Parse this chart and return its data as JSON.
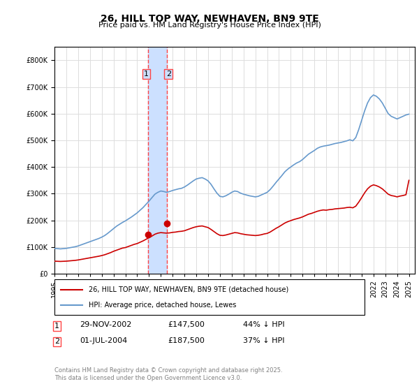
{
  "title": "26, HILL TOP WAY, NEWHAVEN, BN9 9TE",
  "subtitle": "Price paid vs. HM Land Registry's House Price Index (HPI)",
  "legend_label_red": "26, HILL TOP WAY, NEWHAVEN, BN9 9TE (detached house)",
  "legend_label_blue": "HPI: Average price, detached house, Lewes",
  "purchase1_label": "1",
  "purchase1_date": "29-NOV-2002",
  "purchase1_price": "£147,500",
  "purchase1_hpi": "44% ↓ HPI",
  "purchase1_year": 2002.92,
  "purchase1_value": 147500,
  "purchase2_label": "2",
  "purchase2_date": "01-JUL-2004",
  "purchase2_price": "£187,500",
  "purchase2_hpi": "37% ↓ HPI",
  "purchase2_year": 2004.5,
  "purchase2_value": 187500,
  "footer": "Contains HM Land Registry data © Crown copyright and database right 2025.\nThis data is licensed under the Open Government Licence v3.0.",
  "ylim": [
    0,
    850000
  ],
  "xlim_start": 1995.0,
  "xlim_end": 2025.5,
  "red_color": "#cc0000",
  "blue_color": "#6699cc",
  "highlight_color": "#cce0ff",
  "vline_color": "#ff4444",
  "grid_color": "#dddddd",
  "bg_color": "#ffffff",
  "hpi_data_x": [
    1995.0,
    1995.25,
    1995.5,
    1995.75,
    1996.0,
    1996.25,
    1996.5,
    1996.75,
    1997.0,
    1997.25,
    1997.5,
    1997.75,
    1998.0,
    1998.25,
    1998.5,
    1998.75,
    1999.0,
    1999.25,
    1999.5,
    1999.75,
    2000.0,
    2000.25,
    2000.5,
    2000.75,
    2001.0,
    2001.25,
    2001.5,
    2001.75,
    2002.0,
    2002.25,
    2002.5,
    2002.75,
    2003.0,
    2003.25,
    2003.5,
    2003.75,
    2004.0,
    2004.25,
    2004.5,
    2004.75,
    2005.0,
    2005.25,
    2005.5,
    2005.75,
    2006.0,
    2006.25,
    2006.5,
    2006.75,
    2007.0,
    2007.25,
    2007.5,
    2007.75,
    2008.0,
    2008.25,
    2008.5,
    2008.75,
    2009.0,
    2009.25,
    2009.5,
    2009.75,
    2010.0,
    2010.25,
    2010.5,
    2010.75,
    2011.0,
    2011.25,
    2011.5,
    2011.75,
    2012.0,
    2012.25,
    2012.5,
    2012.75,
    2013.0,
    2013.25,
    2013.5,
    2013.75,
    2014.0,
    2014.25,
    2014.5,
    2014.75,
    2015.0,
    2015.25,
    2015.5,
    2015.75,
    2016.0,
    2016.25,
    2016.5,
    2016.75,
    2017.0,
    2017.25,
    2017.5,
    2017.75,
    2018.0,
    2018.25,
    2018.5,
    2018.75,
    2019.0,
    2019.25,
    2019.5,
    2019.75,
    2020.0,
    2020.25,
    2020.5,
    2020.75,
    2021.0,
    2021.25,
    2021.5,
    2021.75,
    2022.0,
    2022.25,
    2022.5,
    2022.75,
    2023.0,
    2023.25,
    2023.5,
    2023.75,
    2024.0,
    2024.25,
    2024.5,
    2024.75,
    2025.0
  ],
  "hpi_data_y": [
    95000,
    94000,
    93000,
    94000,
    95000,
    97000,
    99000,
    101000,
    104000,
    108000,
    112000,
    116000,
    120000,
    124000,
    128000,
    132000,
    137000,
    143000,
    151000,
    160000,
    169000,
    178000,
    185000,
    192000,
    198000,
    205000,
    212000,
    220000,
    228000,
    238000,
    248000,
    260000,
    272000,
    285000,
    298000,
    305000,
    310000,
    308000,
    305000,
    308000,
    312000,
    315000,
    318000,
    320000,
    325000,
    332000,
    340000,
    348000,
    355000,
    358000,
    360000,
    355000,
    348000,
    335000,
    318000,
    302000,
    290000,
    288000,
    292000,
    298000,
    305000,
    310000,
    308000,
    302000,
    298000,
    295000,
    292000,
    290000,
    288000,
    290000,
    295000,
    300000,
    305000,
    315000,
    328000,
    342000,
    355000,
    368000,
    382000,
    392000,
    400000,
    408000,
    415000,
    420000,
    428000,
    438000,
    448000,
    455000,
    462000,
    470000,
    475000,
    478000,
    480000,
    482000,
    485000,
    488000,
    490000,
    492000,
    495000,
    498000,
    502000,
    498000,
    510000,
    540000,
    575000,
    610000,
    640000,
    660000,
    670000,
    665000,
    655000,
    640000,
    620000,
    600000,
    590000,
    585000,
    580000,
    585000,
    590000,
    595000,
    598000
  ],
  "red_data_x": [
    1995.0,
    1995.25,
    1995.5,
    1995.75,
    1996.0,
    1996.25,
    1996.5,
    1996.75,
    1997.0,
    1997.25,
    1997.5,
    1997.75,
    1998.0,
    1998.25,
    1998.5,
    1998.75,
    1999.0,
    1999.25,
    1999.5,
    1999.75,
    2000.0,
    2000.25,
    2000.5,
    2000.75,
    2001.0,
    2001.25,
    2001.5,
    2001.75,
    2002.0,
    2002.25,
    2002.5,
    2002.75,
    2003.0,
    2003.25,
    2003.5,
    2003.75,
    2004.0,
    2004.25,
    2004.5,
    2004.75,
    2005.0,
    2005.25,
    2005.5,
    2005.75,
    2006.0,
    2006.25,
    2006.5,
    2006.75,
    2007.0,
    2007.25,
    2007.5,
    2007.75,
    2008.0,
    2008.25,
    2008.5,
    2008.75,
    2009.0,
    2009.25,
    2009.5,
    2009.75,
    2010.0,
    2010.25,
    2010.5,
    2010.75,
    2011.0,
    2011.25,
    2011.5,
    2011.75,
    2012.0,
    2012.25,
    2012.5,
    2012.75,
    2013.0,
    2013.25,
    2013.5,
    2013.75,
    2014.0,
    2014.25,
    2014.5,
    2014.75,
    2015.0,
    2015.25,
    2015.5,
    2015.75,
    2016.0,
    2016.25,
    2016.5,
    2016.75,
    2017.0,
    2017.25,
    2017.5,
    2017.75,
    2018.0,
    2018.25,
    2018.5,
    2018.75,
    2019.0,
    2019.25,
    2019.5,
    2019.75,
    2020.0,
    2020.25,
    2020.5,
    2020.75,
    2021.0,
    2021.25,
    2021.5,
    2021.75,
    2022.0,
    2022.25,
    2022.5,
    2022.75,
    2023.0,
    2023.25,
    2023.5,
    2023.75,
    2024.0,
    2024.25,
    2024.5,
    2024.75,
    2025.0
  ],
  "red_data_y": [
    47000,
    46500,
    46000,
    46500,
    47000,
    48000,
    49000,
    50000,
    51500,
    53500,
    55500,
    57500,
    59500,
    61500,
    63500,
    65500,
    68000,
    71000,
    75000,
    79000,
    84000,
    88000,
    92000,
    96000,
    98000,
    102000,
    106000,
    110000,
    113000,
    118000,
    123000,
    129000,
    135000,
    141000,
    148000,
    152000,
    154000,
    153000,
    152000,
    153000,
    155000,
    156000,
    158000,
    159000,
    161000,
    165000,
    169000,
    173000,
    176000,
    178000,
    179000,
    176000,
    173000,
    166000,
    158000,
    150000,
    144000,
    143000,
    145000,
    148000,
    151000,
    154000,
    153000,
    150000,
    148000,
    146000,
    145000,
    144000,
    143000,
    144000,
    146000,
    149000,
    151000,
    156000,
    163000,
    170000,
    176000,
    183000,
    190000,
    195000,
    199000,
    203000,
    206000,
    209000,
    213000,
    218000,
    223000,
    226000,
    230000,
    234000,
    237000,
    239000,
    238000,
    240000,
    241000,
    243000,
    244000,
    245000,
    246000,
    248000,
    249000,
    247000,
    253000,
    268000,
    285000,
    303000,
    318000,
    328000,
    333000,
    330000,
    325000,
    318000,
    308000,
    298000,
    293000,
    291000,
    288000,
    291000,
    293000,
    296000,
    350000
  ],
  "tick_years": [
    1995,
    1996,
    1997,
    1998,
    1999,
    2000,
    2001,
    2002,
    2003,
    2004,
    2005,
    2006,
    2007,
    2008,
    2009,
    2010,
    2011,
    2012,
    2013,
    2014,
    2015,
    2016,
    2017,
    2018,
    2019,
    2020,
    2021,
    2022,
    2023,
    2024,
    2025
  ]
}
